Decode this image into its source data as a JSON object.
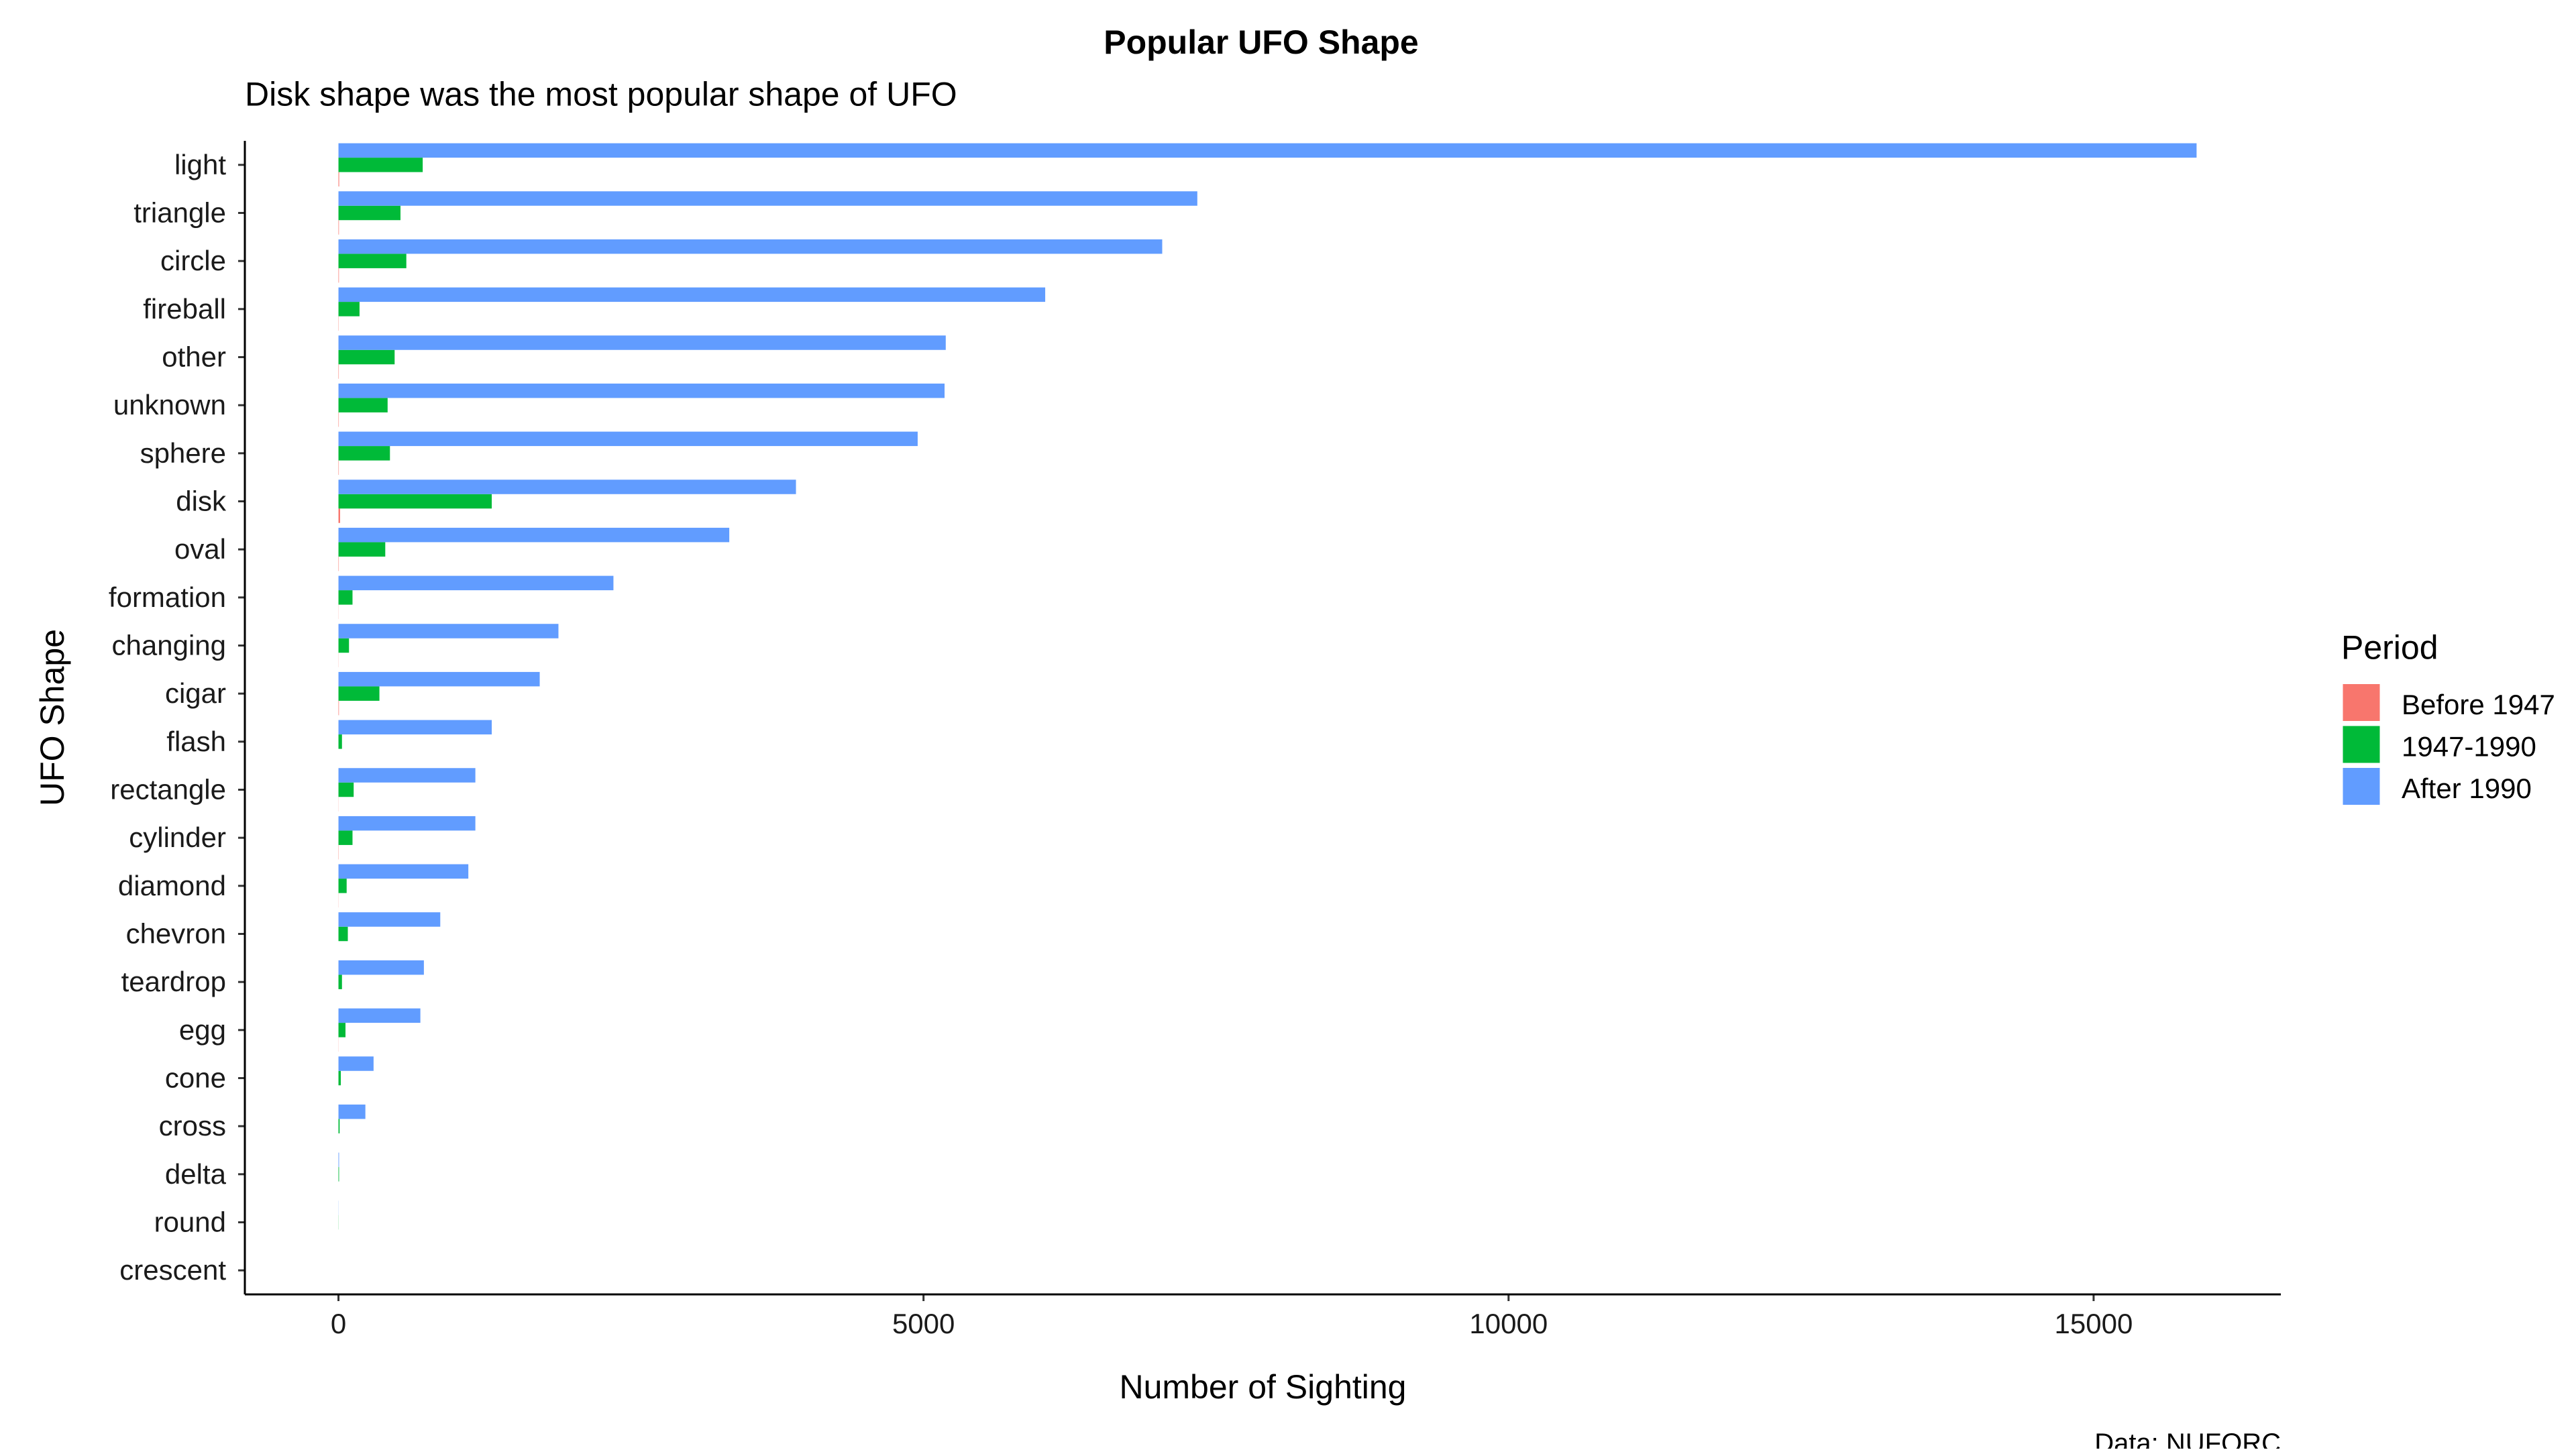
{
  "chart_data": {
    "type": "bar",
    "orientation": "horizontal",
    "title": "Popular UFO Shape",
    "subtitle": "Disk shape was the most popular shape of UFO",
    "xlabel": "Number of Sighting",
    "ylabel": "UFO Shape",
    "caption": "Data: NUFORC",
    "xlim": [
      -800,
      16600
    ],
    "xticks": [
      0,
      5000,
      10000,
      15000
    ],
    "xtick_labels": [
      "0",
      "5000",
      "10000",
      "15000"
    ],
    "grid": false,
    "legend": {
      "title": "Period",
      "placement": "right"
    },
    "categories": [
      "light",
      "triangle",
      "circle",
      "fireball",
      "other",
      "unknown",
      "sphere",
      "disk",
      "oval",
      "formation",
      "changing",
      "cigar",
      "flash",
      "rectangle",
      "cylinder",
      "diamond",
      "chevron",
      "teardrop",
      "egg",
      "cone",
      "cross",
      "delta",
      "round",
      "crescent"
    ],
    "series": [
      {
        "name": "Before 1947",
        "color": "#F8766D",
        "values": [
          6,
          4,
          4,
          2,
          3,
          3,
          3,
          14,
          3,
          1,
          1,
          4,
          0,
          1,
          2,
          1,
          0,
          0,
          1,
          0,
          0,
          0,
          0,
          0
        ]
      },
      {
        "name": "1947-1990",
        "color": "#00BA38",
        "values": [
          720,
          530,
          580,
          180,
          480,
          420,
          440,
          1310,
          400,
          120,
          90,
          350,
          30,
          130,
          120,
          70,
          80,
          30,
          60,
          20,
          10,
          5,
          1,
          0
        ]
      },
      {
        "name": "After 1990",
        "color": "#619CFF",
        "values": [
          15880,
          7340,
          7040,
          6040,
          5190,
          5180,
          4950,
          3910,
          3340,
          2350,
          1880,
          1720,
          1310,
          1170,
          1170,
          1110,
          870,
          730,
          700,
          300,
          230,
          5,
          1,
          0
        ]
      }
    ]
  }
}
